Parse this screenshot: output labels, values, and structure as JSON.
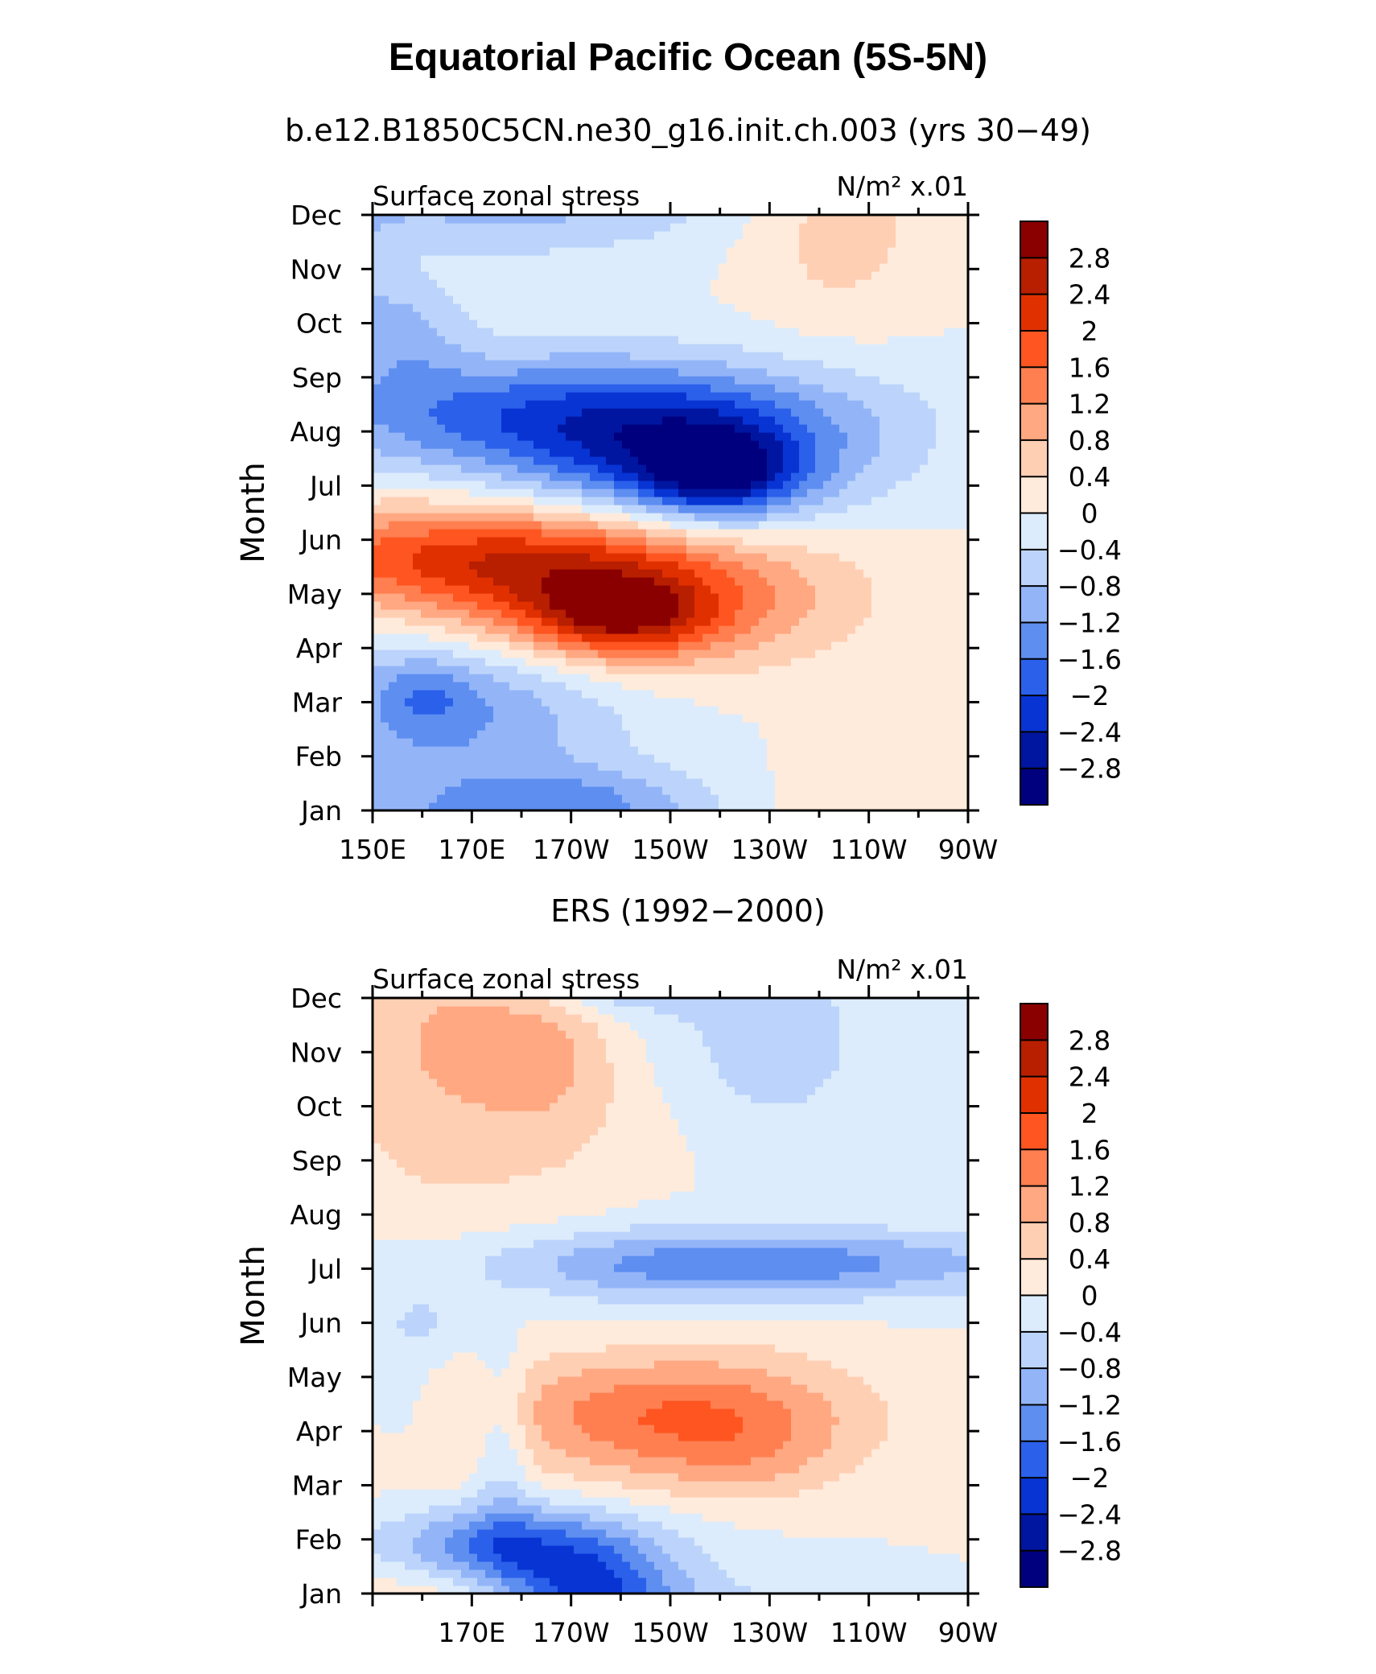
{
  "title": "Equatorial Pacific Ocean (5S-5N)",
  "colorbar": {
    "labels": [
      "2.8",
      "2.4",
      "2",
      "1.6",
      "1.2",
      "0.8",
      "0.4",
      "0",
      "−0.4",
      "−0.8",
      "−1.2",
      "−1.6",
      "−2",
      "−2.4",
      "−2.8"
    ],
    "colors": [
      "#8a0000",
      "#b81e00",
      "#e03000",
      "#ff5520",
      "#ff7f50",
      "#ffa882",
      "#ffcfb4",
      "#ffebdc",
      "#dcecfc",
      "#bcd4fb",
      "#93b5f8",
      "#5e8ef0",
      "#2a60ea",
      "#0834d4",
      "#0016a0",
      "#00007f"
    ]
  },
  "chart_data": [
    {
      "type": "heatmap",
      "title": "b.e12.B1850C5CN.ne30_g16.init.ch.003 (yrs 30−49)",
      "left_label": "Surface zonal stress",
      "units_label": "N/m² x.01",
      "ylabel": "Month",
      "y_ticks": [
        "Jan",
        "Feb",
        "Mar",
        "Apr",
        "May",
        "Jun",
        "Jul",
        "Aug",
        "Sep",
        "Oct",
        "Nov",
        "Dec"
      ],
      "x_ticks": [
        "150E",
        "170E",
        "170W",
        "150W",
        "130W",
        "110W",
        "90W"
      ],
      "x_range": [
        150,
        270
      ],
      "levels": [
        -2.8,
        -2.4,
        -2,
        -1.6,
        -1.2,
        -0.8,
        -0.4,
        0,
        0.4,
        0.8,
        1.2,
        1.6,
        2,
        2.4,
        2.8
      ],
      "field": [
        {
          "x": 145,
          "y": 9.9,
          "v": -0.6,
          "sx": 14,
          "sy": 1.2
        },
        {
          "x": 157,
          "y": 8.9,
          "v": -0.6,
          "sx": 8,
          "sy": 0.8
        },
        {
          "x": 244,
          "y": 10.8,
          "v": 0.6,
          "sx": 13,
          "sy": 1.3
        },
        {
          "x": 170,
          "y": 11.5,
          "v": -0.9,
          "sx": 32,
          "sy": 0.9
        },
        {
          "x": 200,
          "y": 11.6,
          "v": -0.3,
          "sx": 20,
          "sy": 0.7
        },
        {
          "x": 158,
          "y": 10.2,
          "v": 0.4,
          "sx": 8,
          "sy": 0.7
        },
        {
          "x": 192,
          "y": 7.3,
          "v": -2.0,
          "sx": 38,
          "sy": 0.8
        },
        {
          "x": 215,
          "y": 6.3,
          "v": -1.7,
          "sx": 22,
          "sy": 0.8
        },
        {
          "x": 220,
          "y": 6.2,
          "v": -1.5,
          "sx": 10,
          "sy": 0.55
        },
        {
          "x": 173,
          "y": 4.7,
          "v": 2.0,
          "sx": 35,
          "sy": 0.7
        },
        {
          "x": 200,
          "y": 3.7,
          "v": 1.7,
          "sx": 28,
          "sy": 0.8
        },
        {
          "x": 200,
          "y": 3.6,
          "v": 1.5,
          "sx": 12,
          "sy": 0.5
        },
        {
          "x": 165,
          "y": 2.0,
          "v": -1.3,
          "sx": 24,
          "sy": 1.1
        },
        {
          "x": 161,
          "y": 2.1,
          "v": -0.5,
          "sx": 6,
          "sy": 0.45
        },
        {
          "x": 190,
          "y": 0.2,
          "v": -0.6,
          "sx": 16,
          "sy": 0.4
        }
      ]
    },
    {
      "type": "heatmap",
      "title": "ERS (1992−2000)",
      "left_label": "Surface zonal stress",
      "units_label": "N/m² x.01",
      "ylabel": "Month",
      "y_ticks": [
        "Jan",
        "Feb",
        "Mar",
        "Apr",
        "May",
        "Jun",
        "Jul",
        "Aug",
        "Sep",
        "Oct",
        "Nov",
        "Dec"
      ],
      "x_ticks": [
        "170E",
        "170W",
        "150W",
        "130W",
        "110W",
        "90W"
      ],
      "x_range": [
        150,
        270
      ],
      "levels": [
        -2.8,
        -2.4,
        -2,
        -1.6,
        -1.2,
        -0.8,
        -0.4,
        0,
        0.4,
        0.8,
        1.2,
        1.6,
        2,
        2.4,
        2.8
      ],
      "field": [
        {
          "x": 158,
          "y": 10.5,
          "v": 0.6,
          "sx": 12,
          "sy": 2.2
        },
        {
          "x": 185,
          "y": 10.2,
          "v": 0.9,
          "sx": 12,
          "sy": 1.2
        },
        {
          "x": 180,
          "y": 8.8,
          "v": 0.3,
          "sx": 18,
          "sy": 2.2
        },
        {
          "x": 198,
          "y": 11.6,
          "v": -1.4,
          "sx": 14,
          "sy": 0.5
        },
        {
          "x": 232,
          "y": 10.3,
          "v": -0.7,
          "sx": 12,
          "sy": 1.2
        },
        {
          "x": 200,
          "y": 10.5,
          "v": -0.3,
          "sx": 14,
          "sy": 1.0
        },
        {
          "x": 228,
          "y": 6.1,
          "v": -1.5,
          "sx": 38,
          "sy": 0.45
        },
        {
          "x": 200,
          "y": 5.5,
          "v": -0.2,
          "sx": 14,
          "sy": 1.0
        },
        {
          "x": 160,
          "y": 5.0,
          "v": -0.5,
          "sx": 7,
          "sy": 0.5
        },
        {
          "x": 210,
          "y": 3.3,
          "v": 1.6,
          "sx": 26,
          "sy": 0.85
        },
        {
          "x": 226,
          "y": 2.5,
          "v": 0.4,
          "sx": 13,
          "sy": 0.7
        },
        {
          "x": 178,
          "y": 0.9,
          "v": -1.9,
          "sx": 20,
          "sy": 0.55
        },
        {
          "x": 192,
          "y": 0.2,
          "v": -1.2,
          "sx": 12,
          "sy": 0.5
        },
        {
          "x": 176,
          "y": 2.9,
          "v": -0.7,
          "sx": 4,
          "sy": 1.3
        },
        {
          "x": 156,
          "y": 3.5,
          "v": -0.3,
          "sx": 6,
          "sy": 0.8
        }
      ]
    }
  ]
}
